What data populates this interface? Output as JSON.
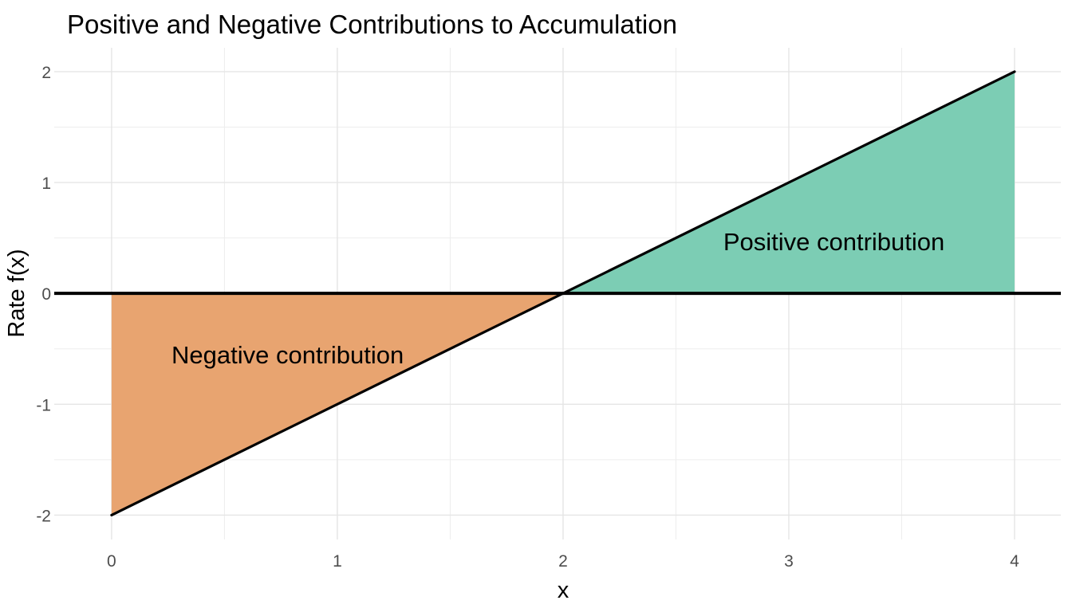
{
  "window": {
    "background": "#FFFFFF"
  },
  "chart_data": {
    "type": "area",
    "title": "Positive and Negative Contributions to Accumulation",
    "xlabel": "x",
    "ylabel": "Rate  f(x)",
    "xlim": [
      -0.254,
      4.205
    ],
    "ylim": [
      -2.22,
      2.215
    ],
    "x_ticks": [
      0,
      1,
      2,
      3,
      4
    ],
    "y_ticks": [
      -2,
      -1,
      0,
      1,
      2
    ],
    "x_minor_ticks": [
      0.5,
      1.5,
      2.5,
      3.5
    ],
    "y_minor_ticks": [
      -1.5,
      -0.5,
      0.5,
      1.5
    ],
    "grid": true,
    "legend_position": "none",
    "line": {
      "x": [
        0,
        4
      ],
      "y": [
        -2,
        2
      ],
      "color": "#000000",
      "width": 3.2
    },
    "zero_line": {
      "y": 0,
      "color": "#000000",
      "width": 4
    },
    "regions": [
      {
        "name": "negative",
        "label": "Negative contribution",
        "fill": "#E8A470",
        "vertices": [
          [
            0,
            0
          ],
          [
            2,
            0
          ],
          [
            0,
            -2
          ]
        ],
        "x_range": [
          0,
          2
        ],
        "label_x": 0.78,
        "label_y": -0.55
      },
      {
        "name": "positive",
        "label": "Positive contribution",
        "fill": "#7CCDB4",
        "vertices": [
          [
            2,
            0
          ],
          [
            4,
            0
          ],
          [
            4,
            2
          ]
        ],
        "x_range": [
          2,
          4
        ],
        "label_x": 3.2,
        "label_y": 0.47
      }
    ],
    "colors": {
      "background": "#FFFFFF",
      "grid_major": "#E5E5E5",
      "grid_minor": "#EDEDED",
      "tick_label": "#4D4D4D",
      "text": "#000000"
    }
  }
}
